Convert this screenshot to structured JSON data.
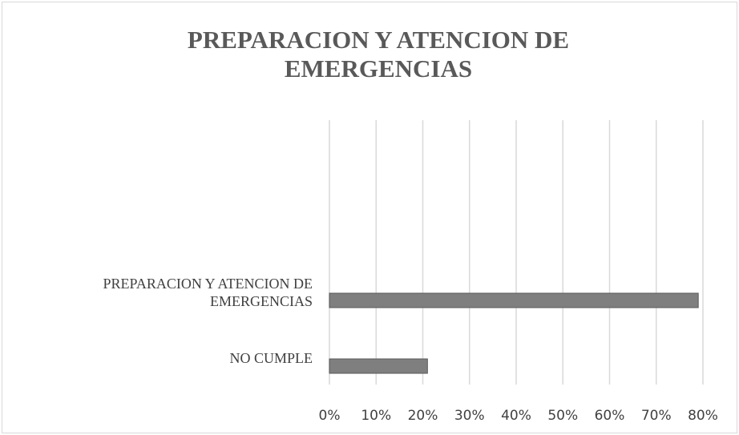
{
  "chart_data": {
    "type": "bar",
    "orientation": "horizontal",
    "title": "PREPARACION Y ATENCION DE EMERGENCIAS",
    "categories": [
      "NO CUMPLE",
      "PREPARACION Y ATENCION DE EMERGENCIAS",
      null,
      null
    ],
    "values": [
      21,
      79,
      null,
      null
    ],
    "color": "#7f7f7f",
    "xlim": [
      0,
      80
    ],
    "xticks": [
      {
        "value": 0,
        "label": "0%"
      },
      {
        "value": 10,
        "label": "10%"
      },
      {
        "value": 20,
        "label": "20%"
      },
      {
        "value": 30,
        "label": "30%"
      },
      {
        "value": 40,
        "label": "40%"
      },
      {
        "value": 50,
        "label": "50%"
      },
      {
        "value": 60,
        "label": "60%"
      },
      {
        "value": 70,
        "label": "70%"
      },
      {
        "value": 80,
        "label": "80%"
      }
    ],
    "grid": true
  }
}
